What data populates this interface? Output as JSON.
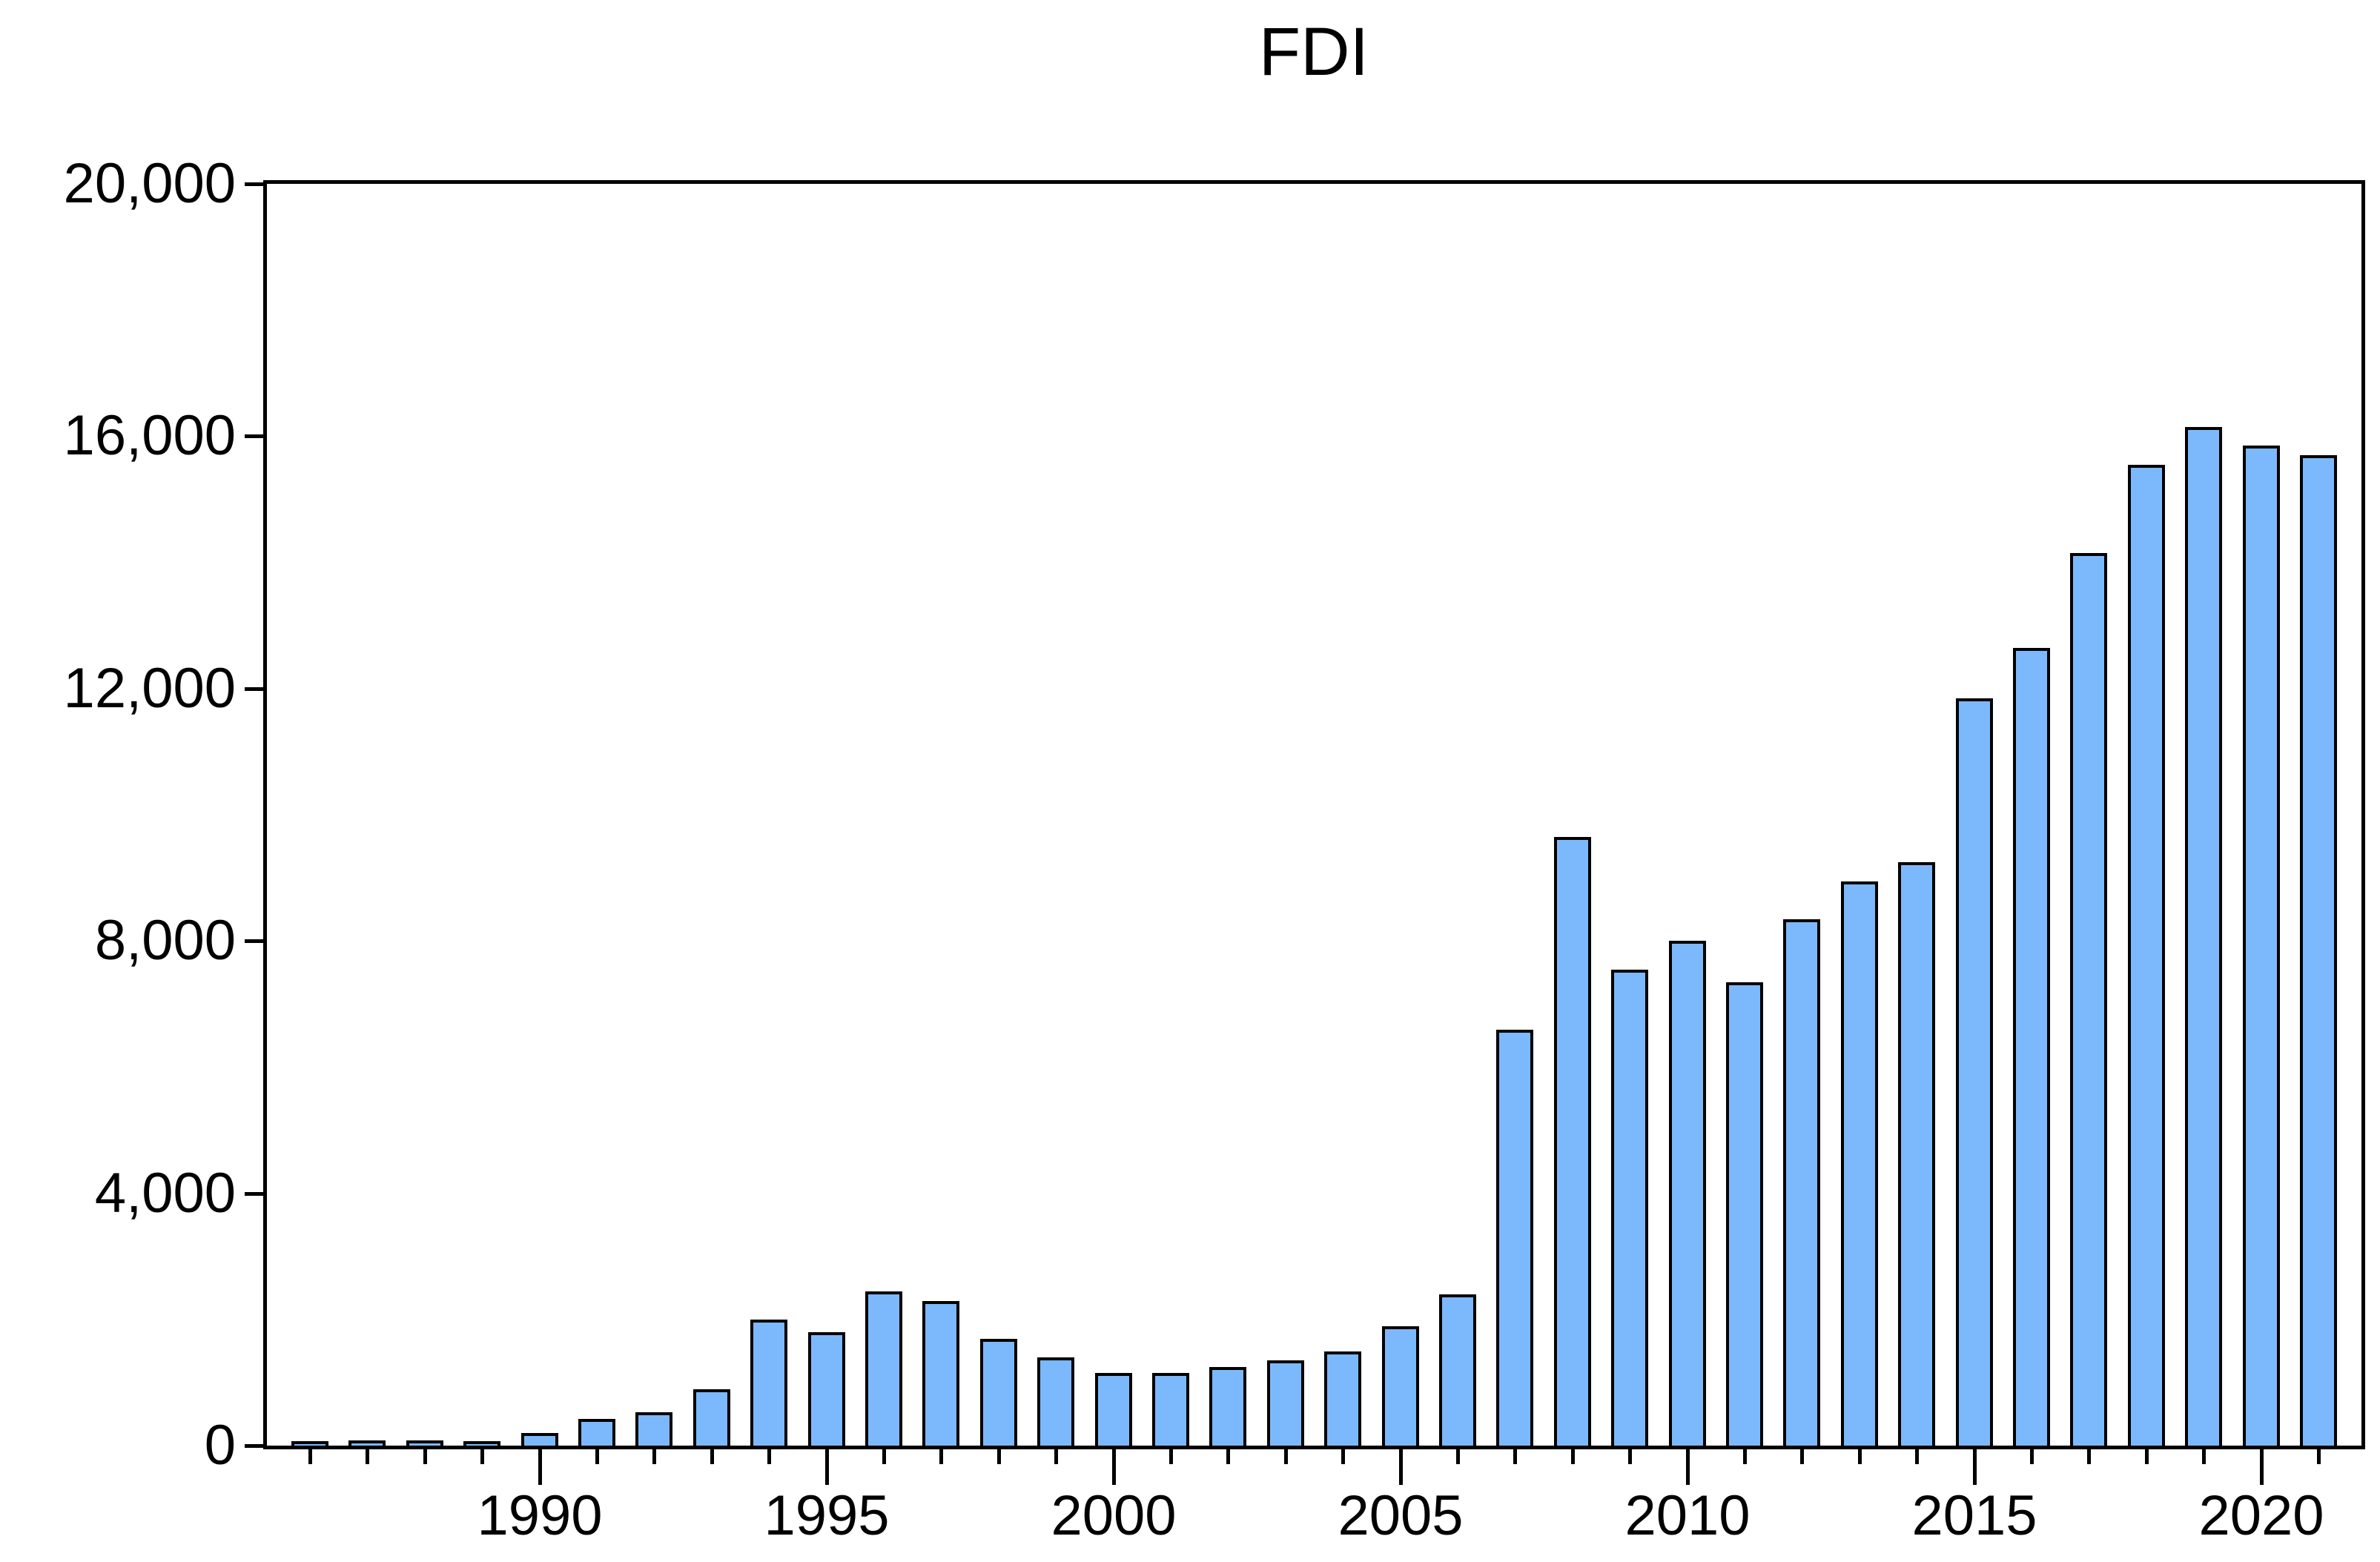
{
  "chart_data": {
    "type": "bar",
    "title": "FDI",
    "x": [
      1986,
      1987,
      1988,
      1989,
      1990,
      1991,
      1992,
      1993,
      1994,
      1995,
      1996,
      1997,
      1998,
      1999,
      2000,
      2001,
      2002,
      2003,
      2004,
      2005,
      2006,
      2007,
      2008,
      2009,
      2010,
      2011,
      2012,
      2013,
      2014,
      2015,
      2016,
      2017,
      2018,
      2019,
      2020,
      2021
    ],
    "values": [
      25,
      35,
      30,
      25,
      150,
      380,
      480,
      850,
      1950,
      1750,
      2400,
      2250,
      1650,
      1350,
      1100,
      1100,
      1200,
      1300,
      1450,
      1850,
      2350,
      6550,
      9600,
      7500,
      7950,
      7300,
      8300,
      8900,
      9200,
      11800,
      12600,
      14100,
      15500,
      16100,
      15800,
      15650
    ],
    "xlabel": "",
    "ylabel": "",
    "ylim": [
      0,
      20000
    ],
    "y_tick_values": [
      0,
      4000,
      8000,
      12000,
      16000,
      20000
    ],
    "y_tick_labels": [
      "0",
      "4,000",
      "8,000",
      "12,000",
      "16,000",
      "20,000"
    ],
    "x_labeled_ticks": [
      1990,
      1995,
      2000,
      2005,
      2010,
      2015,
      2020
    ],
    "grid": "off",
    "legend": "none",
    "bar_fill_color": "#7CB9FC",
    "bar_outline_color": "#000000",
    "axis_color": "#000000",
    "background_color": "#ffffff"
  }
}
